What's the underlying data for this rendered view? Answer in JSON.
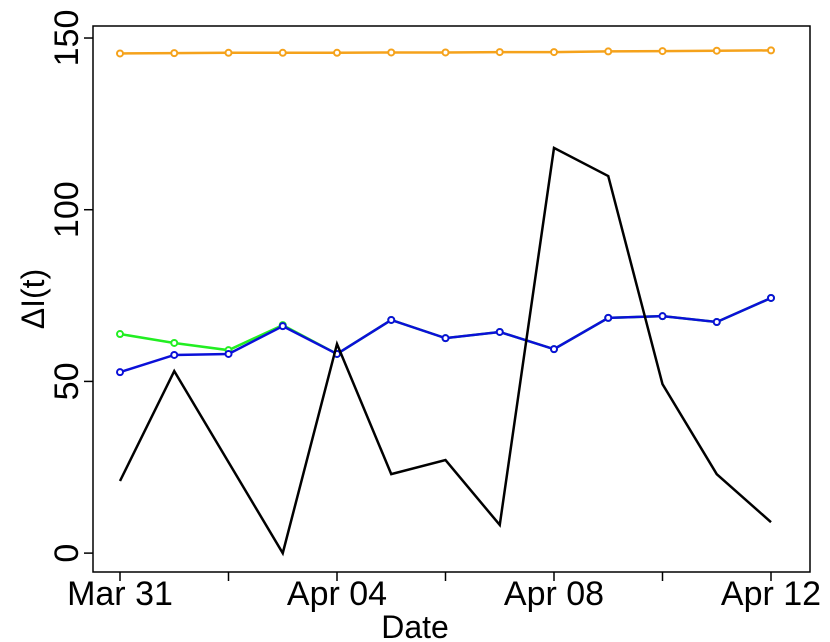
{
  "chart_data": {
    "type": "line",
    "x_label": "Date",
    "y_label": "ΔI(t)",
    "categories": [
      "Mar 31",
      null,
      null,
      null,
      "Apr 04",
      null,
      null,
      null,
      "Apr 08",
      null,
      null,
      null,
      "Apr 12"
    ],
    "series": [
      {
        "color": "#f5a21b",
        "markers": true,
        "values": [
          145.5,
          145.6,
          145.7,
          145.7,
          145.7,
          145.8,
          145.8,
          145.9,
          145.9,
          146.1,
          146.2,
          146.3,
          146.4
        ]
      },
      {
        "color": "#22ee22",
        "markers": true,
        "values": [
          63.8,
          61.2,
          59.1,
          66.4,
          58.0,
          67.9,
          62.6,
          64.4,
          59.4,
          68.5,
          69.0,
          67.3,
          74.3
        ]
      },
      {
        "color": "#0b10d8",
        "markers": true,
        "values": [
          52.7,
          57.7,
          58.0,
          66.1,
          58.0,
          67.9,
          62.6,
          64.4,
          59.4,
          68.5,
          69.0,
          67.3,
          74.3
        ]
      },
      {
        "color": "#000000",
        "markers": false,
        "values": [
          21.0,
          53.0,
          26.5,
          0,
          60.9,
          23.0,
          27.1,
          8.2,
          118.0,
          109.8,
          49.2,
          23.0,
          9.0
        ]
      }
    ],
    "ylim": [
      -5.5,
      153.5
    ],
    "yticks": [
      0,
      50,
      100,
      150
    ],
    "grid": false
  }
}
